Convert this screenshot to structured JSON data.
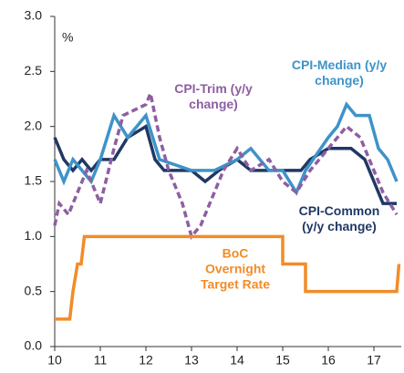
{
  "chart_data": {
    "type": "line",
    "unit_label": "%",
    "xlim": [
      10,
      17.6
    ],
    "xticks": [
      10,
      11,
      12,
      13,
      14,
      15,
      16,
      17
    ],
    "ylim": [
      0,
      3
    ],
    "yticks": [
      {
        "value": 0,
        "label": "0.0"
      },
      {
        "value": 0.5,
        "label": "0.5"
      },
      {
        "value": 1,
        "label": "1.0"
      },
      {
        "value": 1.5,
        "label": "1.5"
      },
      {
        "value": 2,
        "label": "2.0"
      },
      {
        "value": 2.5,
        "label": "2.5"
      },
      {
        "value": 3,
        "label": "3.0"
      }
    ],
    "grid": false,
    "series": [
      {
        "name": "CPI-Common (y/y change)",
        "color": "#1f3864",
        "dashed": false,
        "x": [
          10,
          10.2,
          10.4,
          10.6,
          10.8,
          11,
          11.3,
          11.6,
          12,
          12.2,
          12.4,
          13,
          13.3,
          13.6,
          14,
          14.3,
          14.6,
          15,
          15.4,
          15.6,
          16,
          16.5,
          16.8,
          17,
          17.2,
          17.5
        ],
        "values": [
          1.9,
          1.7,
          1.6,
          1.7,
          1.6,
          1.7,
          1.7,
          1.9,
          2.0,
          1.7,
          1.6,
          1.6,
          1.5,
          1.6,
          1.7,
          1.6,
          1.6,
          1.6,
          1.6,
          1.7,
          1.8,
          1.8,
          1.7,
          1.5,
          1.3,
          1.3
        ]
      },
      {
        "name": "CPI-Median (y/y change)",
        "color": "#3e93c9",
        "dashed": false,
        "x": [
          10,
          10.2,
          10.4,
          10.8,
          11,
          11.3,
          11.6,
          12,
          12.3,
          13,
          13.5,
          14,
          14.3,
          14.7,
          15,
          15.3,
          15.5,
          16,
          16.2,
          16.4,
          16.6,
          16.9,
          17.1,
          17.3,
          17.5
        ],
        "values": [
          1.7,
          1.5,
          1.7,
          1.5,
          1.7,
          2.1,
          1.9,
          2.1,
          1.7,
          1.6,
          1.6,
          1.7,
          1.8,
          1.6,
          1.6,
          1.4,
          1.6,
          1.9,
          2.0,
          2.2,
          2.1,
          2.1,
          1.8,
          1.7,
          1.5
        ]
      },
      {
        "name": "CPI-Trim (y/y change)",
        "color": "#8e5ea2",
        "dashed": true,
        "x": [
          10,
          10.1,
          10.3,
          10.4,
          10.5,
          10.7,
          11,
          11.3,
          11.5,
          12,
          12.1,
          12.3,
          12.5,
          12.8,
          13,
          13.2,
          13.4,
          13.7,
          14,
          14.3,
          14.7,
          15,
          15.3,
          15.6,
          16,
          16.4,
          16.7,
          17,
          17.2,
          17.5
        ],
        "values": [
          1.1,
          1.3,
          1.2,
          1.3,
          1.4,
          1.6,
          1.3,
          1.8,
          2.1,
          2.2,
          2.3,
          1.9,
          1.6,
          1.3,
          1.0,
          1.1,
          1.3,
          1.6,
          1.8,
          1.6,
          1.7,
          1.5,
          1.4,
          1.6,
          1.8,
          2.0,
          1.9,
          1.6,
          1.4,
          1.2
        ]
      },
      {
        "name": "BoC Overnight Target Rate",
        "color": "#f28c28",
        "dashed": false,
        "x": [
          10,
          10.33,
          10.4,
          10.5,
          10.58,
          10.65,
          15,
          15,
          15.5,
          15.5,
          17.5,
          17.55
        ],
        "values": [
          0.25,
          0.25,
          0.5,
          0.75,
          0.75,
          1.0,
          1.0,
          0.75,
          0.75,
          0.5,
          0.5,
          0.75
        ]
      }
    ]
  }
}
